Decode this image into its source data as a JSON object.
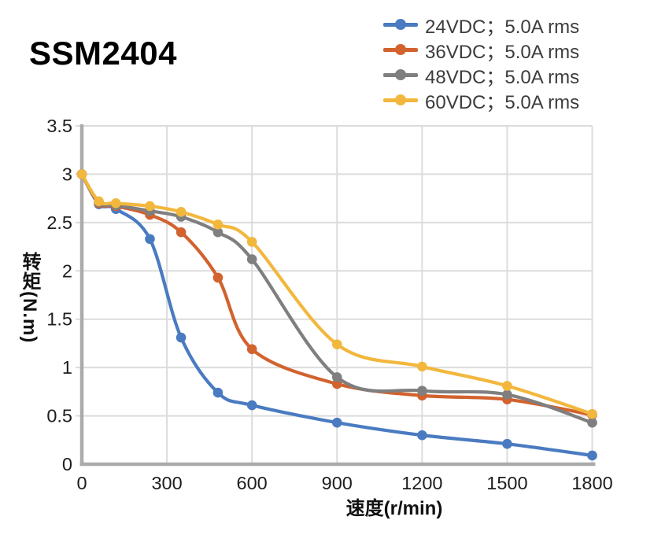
{
  "title": "SSM2404",
  "chart_data": {
    "type": "line",
    "title": "SSM2404",
    "xlabel": "速度(r/min)",
    "ylabel": "转矩(N.m)",
    "xlim": [
      0,
      1800
    ],
    "ylim": [
      0,
      3.5
    ],
    "x_ticks": [
      0,
      300,
      600,
      900,
      1200,
      1500,
      1800
    ],
    "y_ticks": [
      0,
      0.5,
      1,
      1.5,
      2,
      2.5,
      3,
      3.5
    ],
    "grid": true,
    "legend_position": "top-right",
    "x": [
      0,
      60,
      120,
      240,
      350,
      480,
      600,
      900,
      1200,
      1500,
      1800
    ],
    "series": [
      {
        "name": "24VDC；5.0A rms",
        "color": "#4A7BC1",
        "values": [
          3.0,
          2.69,
          2.64,
          2.33,
          1.31,
          0.74,
          0.61,
          0.43,
          0.3,
          0.21,
          0.09
        ]
      },
      {
        "name": "36VDC；5.0A rms",
        "color": "#D2622E",
        "values": [
          3.0,
          2.7,
          2.67,
          2.58,
          2.4,
          1.93,
          1.19,
          0.83,
          0.71,
          0.67,
          0.51
        ]
      },
      {
        "name": "48VDC；5.0A rms",
        "color": "#7F7F7F",
        "values": [
          3.0,
          2.71,
          2.68,
          2.62,
          2.56,
          2.4,
          2.12,
          0.9,
          0.76,
          0.72,
          0.43
        ]
      },
      {
        "name": "60VDC；5.0A rms",
        "color": "#F2B73D",
        "values": [
          3.0,
          2.72,
          2.7,
          2.67,
          2.61,
          2.48,
          2.3,
          1.24,
          1.01,
          0.81,
          0.52
        ]
      }
    ],
    "style": {
      "grid_color": "#DCDCDC",
      "axis_color": "#ABABAB",
      "tick_label_color": "#1D1D1D",
      "legend_text_color": "#3C3C3C",
      "title_color": "#000000",
      "background": "#FFFFFF"
    }
  }
}
